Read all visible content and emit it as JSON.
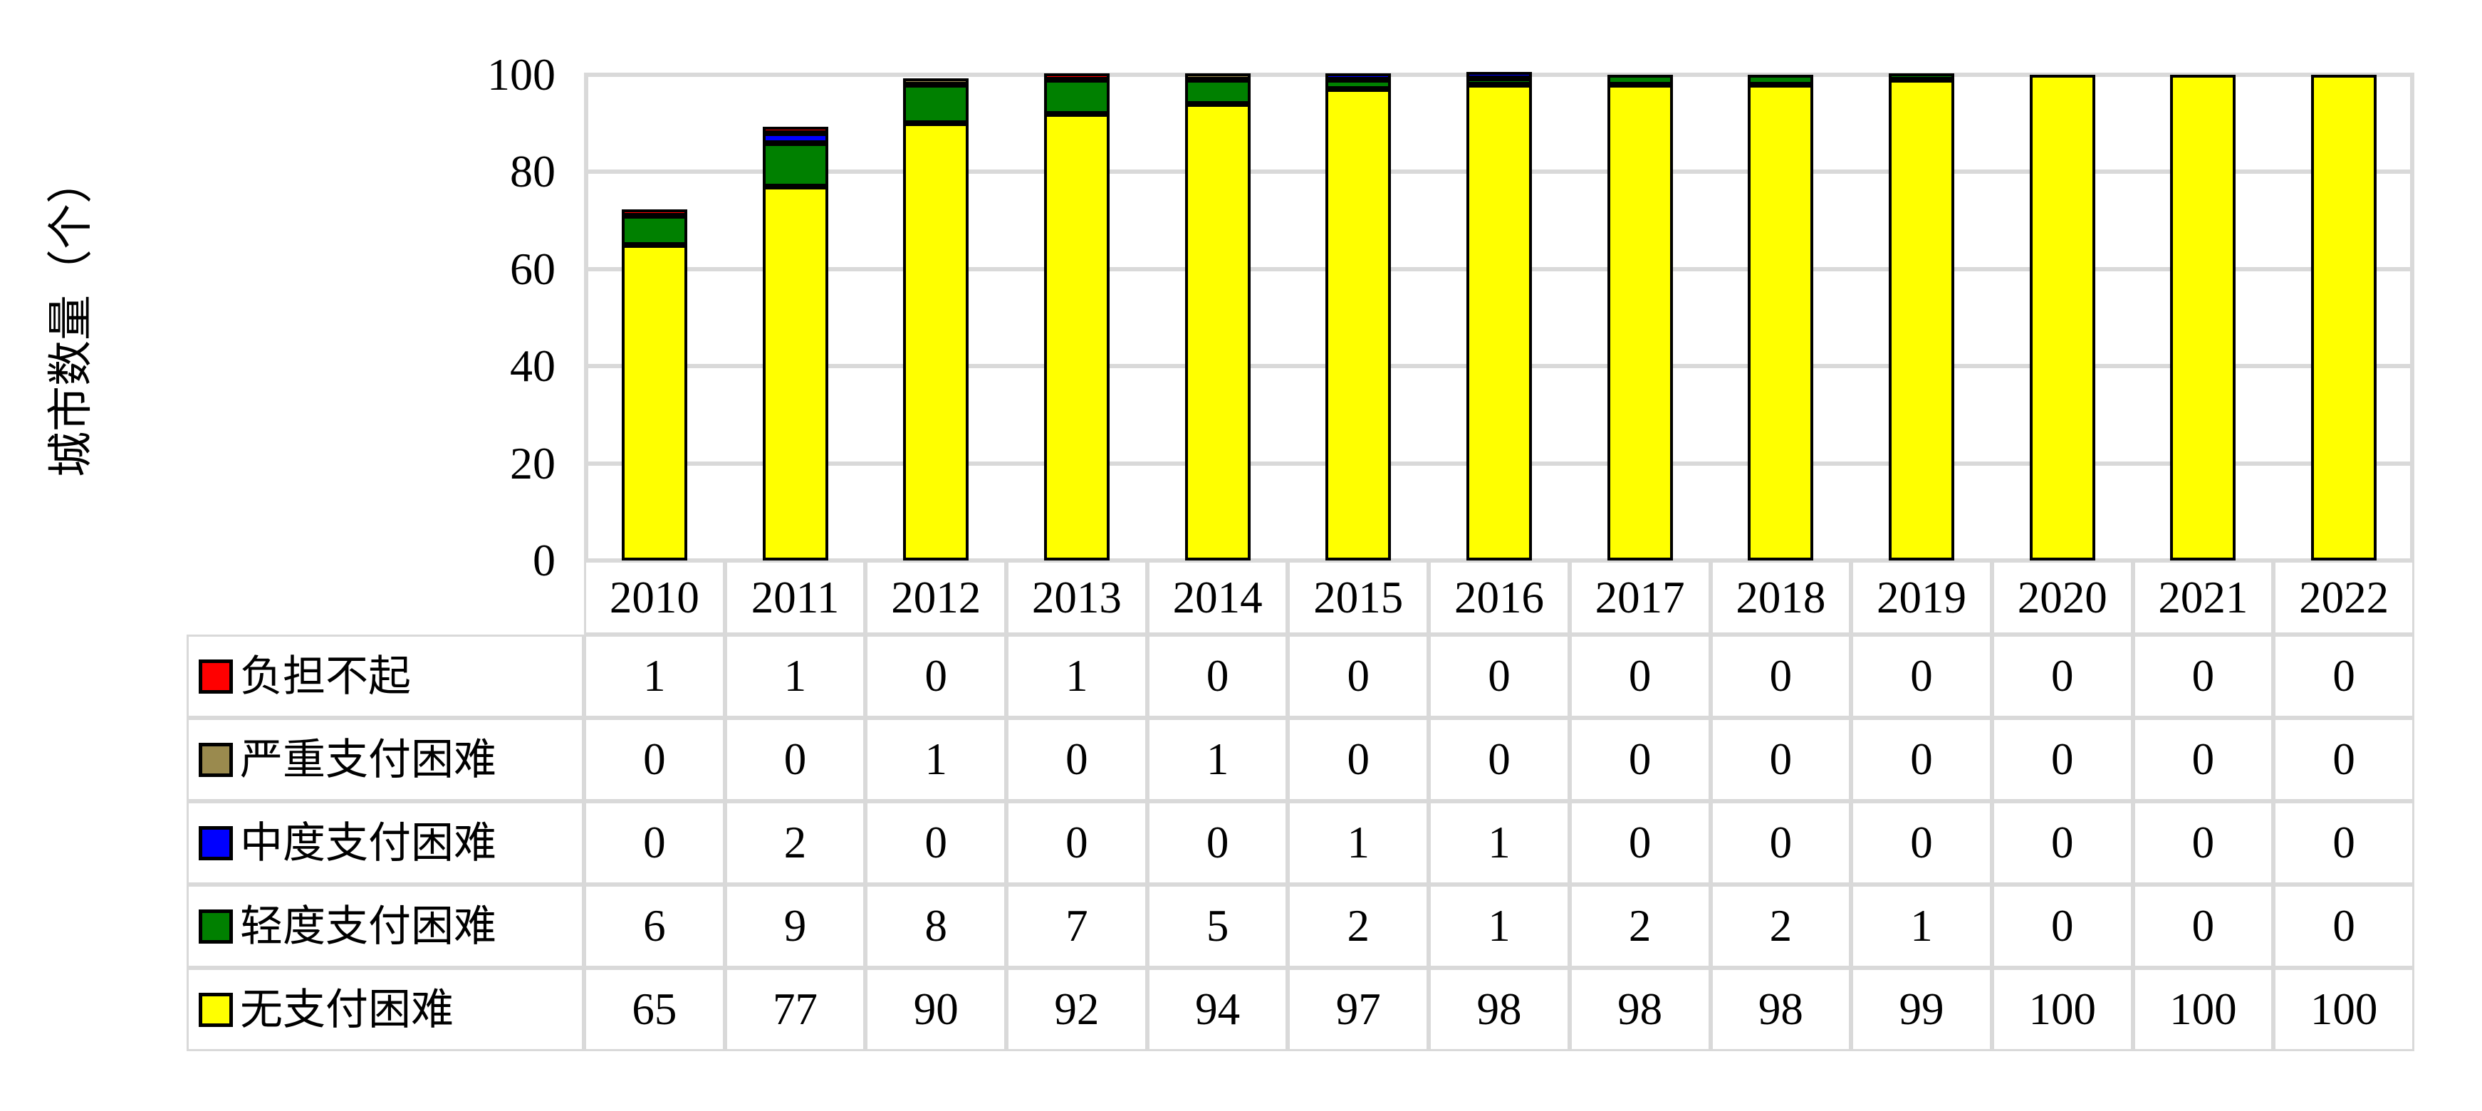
{
  "chart_data": {
    "type": "bar",
    "stacked": true,
    "title": "",
    "xlabel": "",
    "ylabel": "城市数量（个）",
    "ylim": [
      0,
      100
    ],
    "yticks": [
      0,
      20,
      40,
      60,
      80,
      100
    ],
    "grid": true,
    "legend_position": "table-left-column",
    "categories": [
      "2010",
      "2011",
      "2012",
      "2013",
      "2014",
      "2015",
      "2016",
      "2017",
      "2018",
      "2019",
      "2020",
      "2021",
      "2022"
    ],
    "series": [
      {
        "name": "负担不起",
        "color": "#FF0000",
        "values": [
          1,
          1,
          0,
          1,
          0,
          0,
          0,
          0,
          0,
          0,
          0,
          0,
          0
        ]
      },
      {
        "name": "严重支付困难",
        "color": "#9A8A4E",
        "values": [
          0,
          0,
          1,
          0,
          1,
          0,
          0,
          0,
          0,
          0,
          0,
          0,
          0
        ]
      },
      {
        "name": "中度支付困难",
        "color": "#0000FF",
        "values": [
          0,
          2,
          0,
          0,
          0,
          1,
          1,
          0,
          0,
          0,
          0,
          0,
          0
        ]
      },
      {
        "name": "轻度支付困难",
        "color": "#008000",
        "values": [
          6,
          9,
          8,
          7,
          5,
          2,
          1,
          2,
          2,
          1,
          0,
          0,
          0
        ]
      },
      {
        "name": "无支付困难",
        "color": "#FFFF00",
        "values": [
          65,
          77,
          90,
          92,
          94,
          97,
          98,
          98,
          98,
          99,
          100,
          100,
          100
        ]
      }
    ],
    "stack_order_bottom_to_top": [
      "无支付困难",
      "轻度支付困难",
      "中度支付困难",
      "严重支付困难",
      "负担不起"
    ]
  },
  "colors": {
    "background": "#FFFFFF",
    "gridline": "#D9D9D9",
    "table_border": "#D9D9D9",
    "bar_outline": "#000000",
    "text": "#000000"
  }
}
